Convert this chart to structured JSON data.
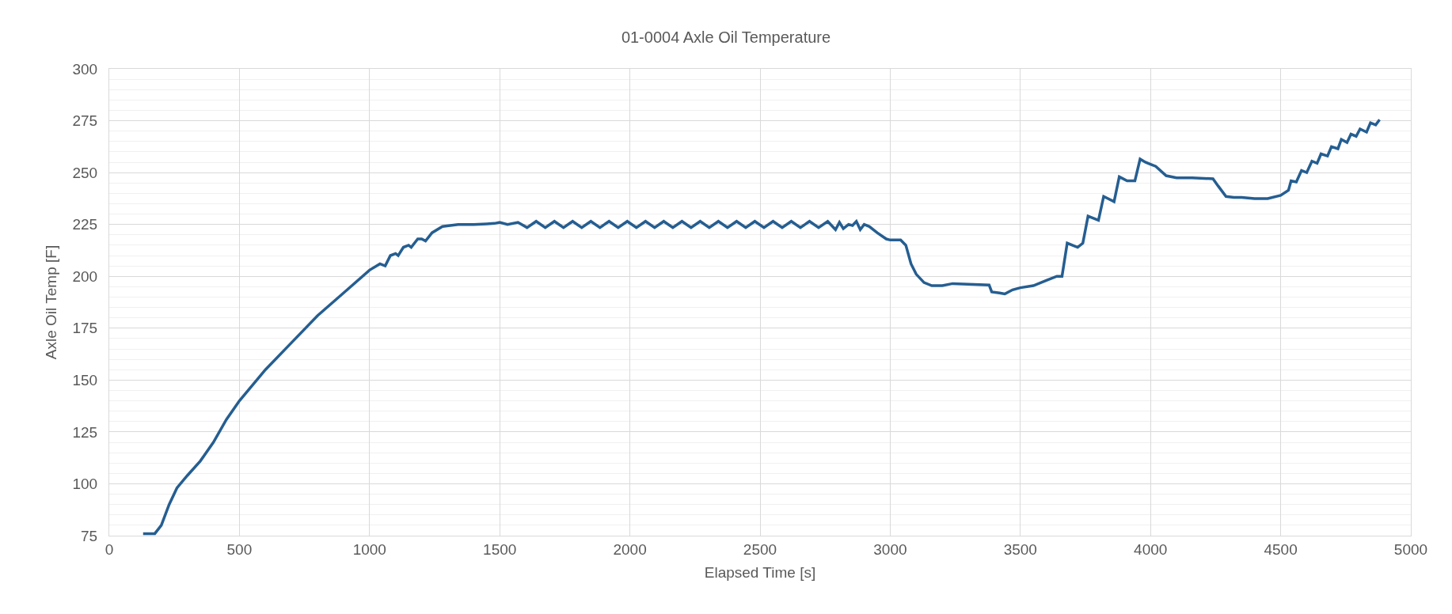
{
  "chart_data": {
    "type": "line",
    "title": "01-0004 Axle Oil Temperature",
    "xlabel": "Elapsed Time [s]",
    "ylabel": "Axle Oil Temp [F]",
    "xlim": [
      0,
      5000
    ],
    "xticks": [
      0,
      500,
      1000,
      1500,
      2000,
      2500,
      3000,
      3500,
      4000,
      4500,
      5000
    ],
    "ylim": [
      75,
      300
    ],
    "yticks": [
      75,
      100,
      125,
      150,
      175,
      200,
      225,
      250,
      275,
      300
    ],
    "grid": true,
    "marker": "none",
    "line_style": "solid",
    "series": [
      {
        "color": "#255e91",
        "x": [
          130,
          175,
          200,
          230,
          260,
          300,
          350,
          400,
          450,
          500,
          600,
          700,
          800,
          900,
          1000,
          1040,
          1060,
          1080,
          1100,
          1110,
          1130,
          1150,
          1160,
          1185,
          1200,
          1215,
          1240,
          1280,
          1340,
          1400,
          1450,
          1480,
          1500,
          1530,
          1570,
          1605,
          1640,
          1675,
          1710,
          1745,
          1780,
          1815,
          1850,
          1885,
          1920,
          1955,
          1990,
          2025,
          2060,
          2095,
          2130,
          2165,
          2200,
          2235,
          2270,
          2305,
          2340,
          2375,
          2410,
          2445,
          2480,
          2515,
          2550,
          2585,
          2620,
          2655,
          2690,
          2725,
          2760,
          2790,
          2805,
          2820,
          2840,
          2855,
          2870,
          2885,
          2900,
          2920,
          2950,
          2985,
          3000,
          3040,
          3060,
          3080,
          3100,
          3130,
          3160,
          3200,
          3240,
          3380,
          3390,
          3420,
          3440,
          3470,
          3500,
          3550,
          3600,
          3640,
          3660,
          3680,
          3720,
          3740,
          3760,
          3800,
          3820,
          3860,
          3880,
          3910,
          3940,
          3960,
          3980,
          4000,
          4020,
          4060,
          4100,
          4160,
          4240,
          4260,
          4290,
          4320,
          4350,
          4400,
          4450,
          4500,
          4530,
          4540,
          4560,
          4580,
          4600,
          4620,
          4640,
          4655,
          4680,
          4695,
          4720,
          4733,
          4755,
          4770,
          4790,
          4805,
          4830,
          4845,
          4865,
          4880
        ],
        "values": [
          76,
          76,
          80,
          90,
          98,
          104,
          111,
          120,
          131,
          140,
          155,
          168,
          181,
          192,
          203,
          206,
          205,
          210,
          211,
          210,
          214,
          215,
          214,
          218,
          218,
          217,
          221,
          224,
          225,
          225,
          225.3,
          225.5,
          226,
          225,
          226,
          223.5,
          226.5,
          223.5,
          226.5,
          223.5,
          226.5,
          223.5,
          226.5,
          223.5,
          226.5,
          223.5,
          226.5,
          223.5,
          226.5,
          223.5,
          226.5,
          223.5,
          226.5,
          223.5,
          226.5,
          223.5,
          226.5,
          223.5,
          226.5,
          223.5,
          226.5,
          223.5,
          226.5,
          223.5,
          226.5,
          223.5,
          226.5,
          223.5,
          226.5,
          222.5,
          226,
          223,
          225,
          224.5,
          226.5,
          222.5,
          225,
          224,
          221,
          218,
          217.5,
          217.5,
          215,
          206,
          201,
          197,
          195.5,
          195.5,
          196.5,
          195.8,
          192.5,
          192,
          191.5,
          193.5,
          194.5,
          195.5,
          198,
          200,
          200,
          216,
          214,
          216,
          229,
          227,
          238.5,
          236,
          248,
          246,
          246,
          256.5,
          255,
          254,
          253,
          248.5,
          247.5,
          247.5,
          247,
          243.5,
          238.5,
          238,
          238,
          237.5,
          237.5,
          239,
          241.5,
          246,
          245.5,
          251,
          250,
          255.5,
          254.5,
          259,
          258,
          262.5,
          261.5,
          266,
          264.5,
          268.5,
          267.5,
          271,
          269.5,
          274,
          273,
          275.5
        ]
      }
    ]
  }
}
